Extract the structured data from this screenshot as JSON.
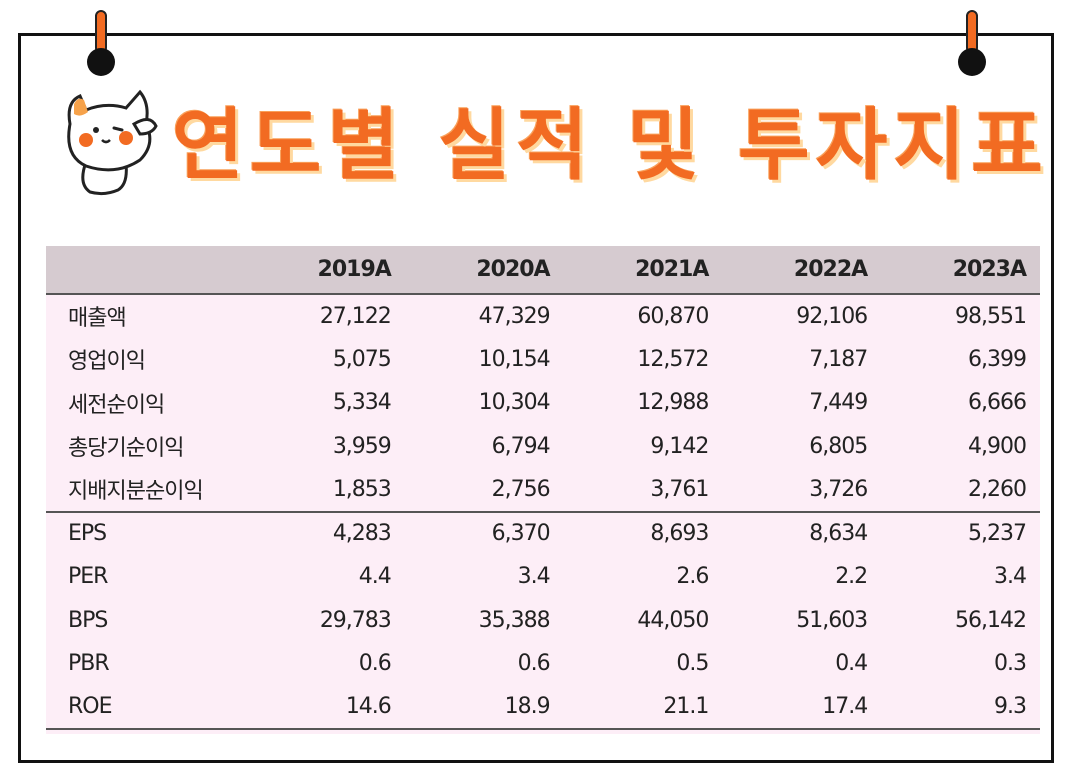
{
  "title": "연도별 실적 및 투자지표",
  "colors": {
    "accent": "#f26b22",
    "table_bg": "#fdeef7",
    "header_bg": "#d6cbd0"
  },
  "table": {
    "columns": [
      "",
      "2019A",
      "2020A",
      "2021A",
      "2022A",
      "2023A"
    ],
    "rows": [
      {
        "label": "매출액",
        "values": [
          "27,122",
          "47,329",
          "60,870",
          "92,106",
          "98,551"
        ]
      },
      {
        "label": "영업이익",
        "values": [
          "5,075",
          "10,154",
          "12,572",
          "7,187",
          "6,399"
        ]
      },
      {
        "label": "세전순이익",
        "values": [
          "5,334",
          "10,304",
          "12,988",
          "7,449",
          "6,666"
        ]
      },
      {
        "label": "총당기순이익",
        "values": [
          "3,959",
          "6,794",
          "9,142",
          "6,805",
          "4,900"
        ]
      },
      {
        "label": "지배지분순이익",
        "values": [
          "1,853",
          "2,756",
          "3,761",
          "3,726",
          "2,260"
        ]
      },
      {
        "label": "EPS",
        "values": [
          "4,283",
          "6,370",
          "8,693",
          "8,634",
          "5,237"
        ]
      },
      {
        "label": "PER",
        "values": [
          "4.4",
          "3.4",
          "2.6",
          "2.2",
          "3.4"
        ]
      },
      {
        "label": "BPS",
        "values": [
          "29,783",
          "35,388",
          "44,050",
          "51,603",
          "56,142"
        ]
      },
      {
        "label": "PBR",
        "values": [
          "0.6",
          "0.6",
          "0.5",
          "0.4",
          "0.3"
        ]
      },
      {
        "label": "ROE",
        "values": [
          "14.6",
          "18.9",
          "21.1",
          "17.4",
          "9.3"
        ]
      }
    ]
  }
}
